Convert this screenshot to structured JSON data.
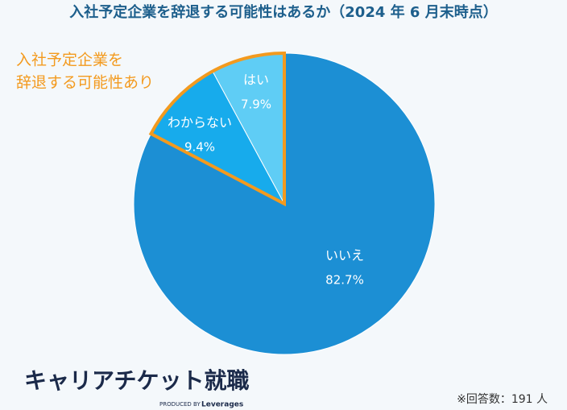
{
  "chart_data": {
    "type": "pie",
    "title": "入社予定企業を辞退する可能性はあるか（2024 年 6 月末時点）",
    "categories": [
      "はい",
      "わからない",
      "いいえ"
    ],
    "values": [
      7.9,
      9.4,
      82.7
    ],
    "value_labels": [
      "7.9%",
      "9.4%",
      "82.7%"
    ],
    "colors": [
      "#5fcdf5",
      "#17abec",
      "#1c8fd4"
    ],
    "highlight_color": "#f39a1e",
    "annotation": [
      "入社予定企業を",
      "辞退する可能性あり"
    ],
    "note": "※回答数：191 人"
  },
  "logo": {
    "name": "キャリアチケット就職",
    "produced_by": "PRODUCED BY",
    "brand": "Leverages"
  }
}
